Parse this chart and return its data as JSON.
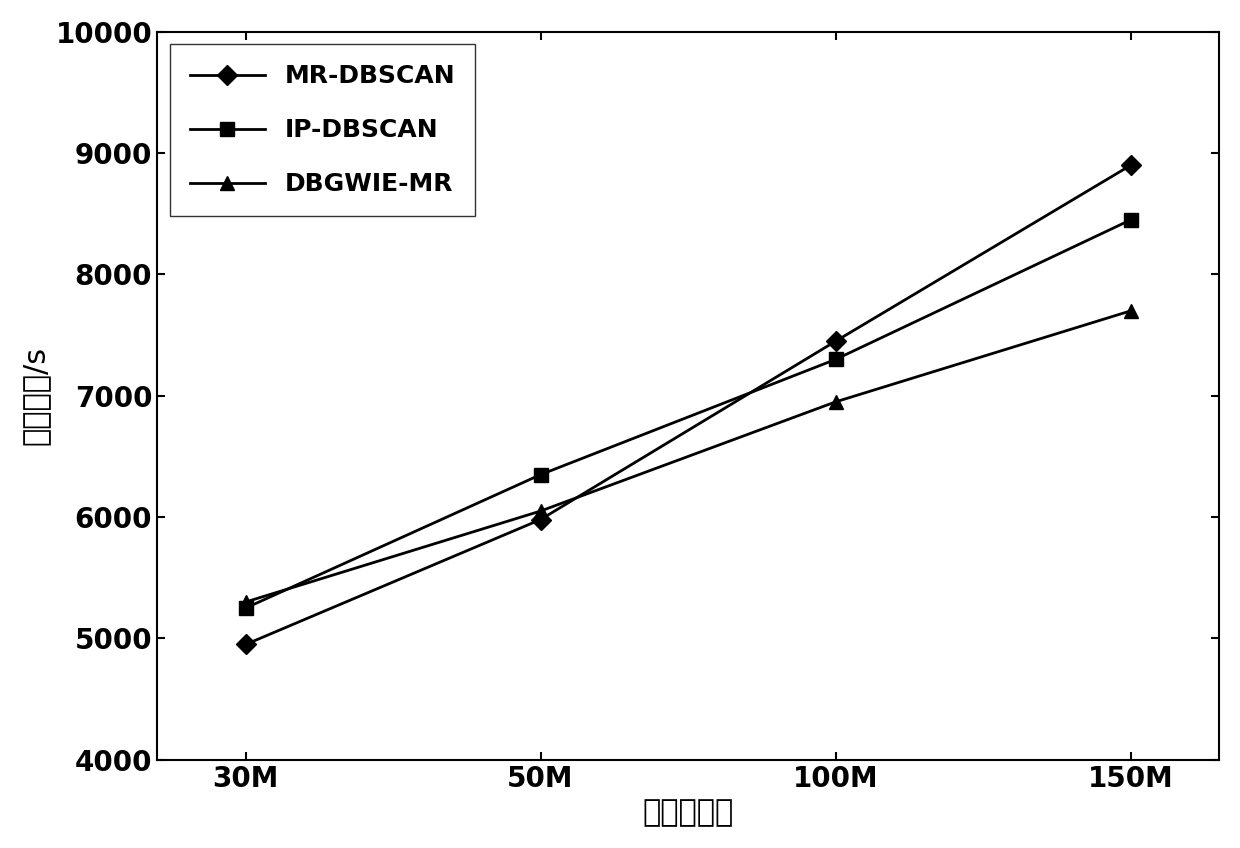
{
  "x_labels": [
    "30M",
    "50M",
    "100M",
    "150M"
  ],
  "x_values": [
    0,
    1,
    2,
    3
  ],
  "series": [
    {
      "label": "MR-DBSCAN",
      "values": [
        4950,
        5980,
        7450,
        8900
      ],
      "marker": "D",
      "color": "#000000",
      "markersize": 10,
      "linewidth": 2.0,
      "markerfacecolor": "#000000"
    },
    {
      "label": "IP-DBSCAN",
      "values": [
        5250,
        6350,
        7300,
        8450
      ],
      "marker": "s",
      "color": "#000000",
      "markersize": 10,
      "linewidth": 2.0,
      "markerfacecolor": "#000000"
    },
    {
      "label": "DBGWIE-MR",
      "values": [
        5300,
        6050,
        6950,
        7700
      ],
      "marker": "^",
      "color": "#000000",
      "markersize": 10,
      "linewidth": 2.0,
      "markerfacecolor": "#000000"
    }
  ],
  "ylabel": "运行时间/s",
  "xlabel": "数据点数量",
  "ylim": [
    4000,
    10000
  ],
  "yticks": [
    4000,
    5000,
    6000,
    7000,
    8000,
    9000,
    10000
  ],
  "background_color": "#ffffff",
  "ylabel_fontsize": 22,
  "xlabel_fontsize": 22,
  "tick_fontsize": 20,
  "legend_fontsize": 18
}
